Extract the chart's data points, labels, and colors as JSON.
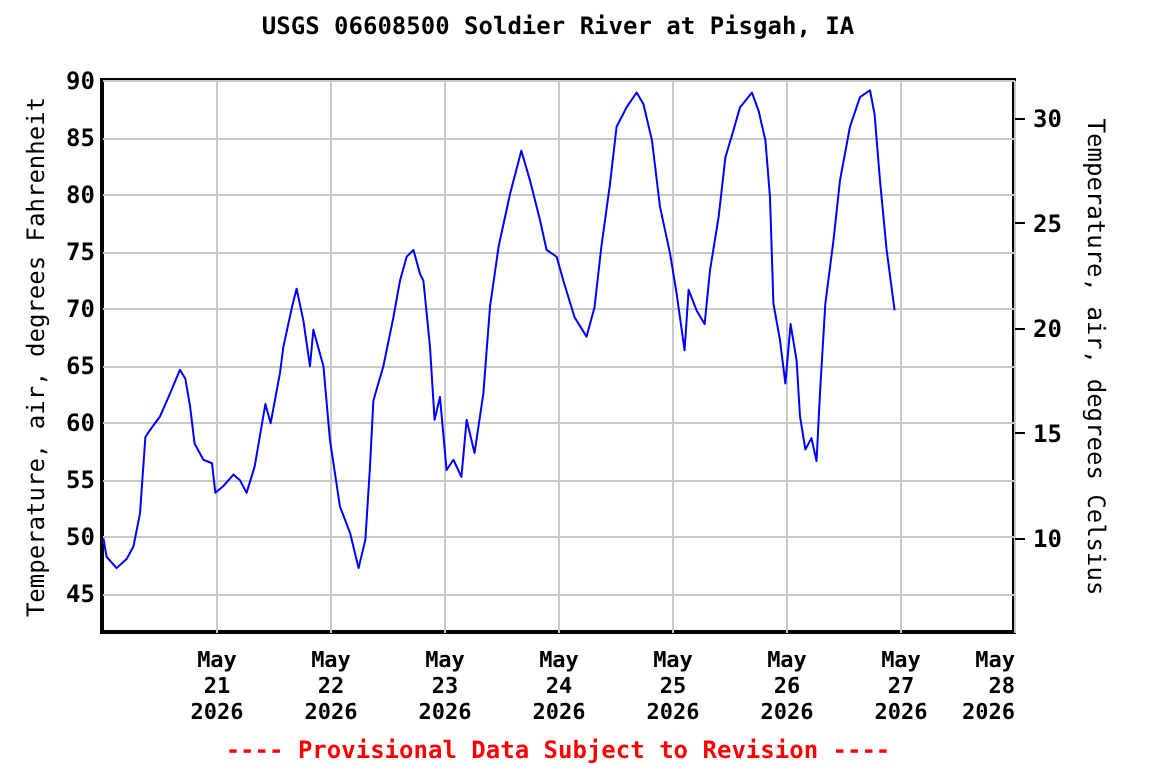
{
  "chart_data": {
    "type": "line",
    "title": "USGS 06608500 Soldier River at Pisgah, IA",
    "ylabel": "Temperature, air, degrees Fahrenheit",
    "y2label": "Temperature, air, degrees Celsius",
    "annotations": [
      "---- Provisional Data Subject to Revision ----"
    ],
    "xlim": [
      "2026-05-20",
      "2026-05-28"
    ],
    "xticks": [
      {
        "value": "2026-05-21",
        "label": "May\n21\n2026"
      },
      {
        "value": "2026-05-22",
        "label": "May\n22\n2026"
      },
      {
        "value": "2026-05-23",
        "label": "May\n23\n2026"
      },
      {
        "value": "2026-05-24",
        "label": "May\n24\n2026"
      },
      {
        "value": "2026-05-25",
        "label": "May\n25\n2026"
      },
      {
        "value": "2026-05-26",
        "label": "May\n26\n2026"
      },
      {
        "value": "2026-05-27",
        "label": "May\n27\n2026"
      },
      {
        "value": "2026-05-28",
        "label": "May\n28\n2026"
      }
    ],
    "ylim": [
      41.6,
      90
    ],
    "yticks": [
      45,
      50,
      55,
      60,
      65,
      70,
      75,
      80,
      85,
      90
    ],
    "y2lim": [
      5.5,
      31.8
    ],
    "y2ticks": [
      10,
      15,
      20,
      25,
      30
    ],
    "grid": true,
    "series": [
      {
        "color": "#0000ff",
        "x": [
          "2026-05-20T00:18",
          "2026-05-20T00:58",
          "2026-05-20T03:04",
          "2026-05-20T05:11",
          "2026-05-20T06:37",
          "2026-05-20T08:00",
          "2026-05-20T09:08",
          "2026-05-20T10:06",
          "2026-05-20T12:13",
          "2026-05-20T14:19",
          "2026-05-20T16:25",
          "2026-05-20T17:33",
          "2026-05-20T18:32",
          "2026-05-20T19:30",
          "2026-05-20T21:21",
          "2026-05-20T23:09",
          "2026-05-20T23:52",
          "2026-05-21T01:33",
          "2026-05-21T03:40",
          "2026-05-21T05:03",
          "2026-05-21T06:26",
          "2026-05-21T08:08",
          "2026-05-21T10:24",
          "2026-05-21T11:30",
          "2026-05-21T13:28",
          "2026-05-21T14:11",
          "2026-05-21T16:00",
          "2026-05-21T16:58",
          "2026-05-21T18:24",
          "2026-05-21T19:47",
          "2026-05-21T20:30",
          "2026-05-21T22:37",
          "2026-05-22T00:00",
          "2026-05-22T02:06",
          "2026-05-22T04:13",
          "2026-05-22T06:01",
          "2026-05-22T07:27",
          "2026-05-22T08:25",
          "2026-05-22T09:08",
          "2026-05-22T11:14",
          "2026-05-22T13:21",
          "2026-05-22T14:44",
          "2026-05-22T16:08",
          "2026-05-22T17:34",
          "2026-05-22T18:57",
          "2026-05-22T19:40",
          "2026-05-22T21:03",
          "2026-05-22T22:01",
          "2026-05-22T23:09",
          "2026-05-23T00:33",
          "2026-05-23T01:59",
          "2026-05-23T03:40",
          "2026-05-23T04:46",
          "2026-05-23T06:26",
          "2026-05-23T08:17",
          "2026-05-23T09:41",
          "2026-05-23T11:30",
          "2026-05-23T13:54",
          "2026-05-23T16:17",
          "2026-05-23T18:06",
          "2026-05-23T20:13",
          "2026-05-23T21:36",
          "2026-05-23T23:43",
          "2026-05-24T01:08",
          "2026-05-24T03:29",
          "2026-05-24T06:01",
          "2026-05-24T07:42",
          "2026-05-24T09:08",
          "2026-05-24T10:57",
          "2026-05-24T12:20",
          "2026-05-24T14:26",
          "2026-05-24T16:33",
          "2026-05-24T17:59",
          "2026-05-24T19:47",
          "2026-05-24T21:28",
          "2026-05-24T23:35",
          "2026-05-25T00:58",
          "2026-05-25T02:39",
          "2026-05-25T03:30",
          "2026-05-25T05:11",
          "2026-05-25T06:52",
          "2026-05-25T08:00",
          "2026-05-25T09:49",
          "2026-05-25T11:14",
          "2026-05-25T12:56",
          "2026-05-25T14:19",
          "2026-05-25T16:50",
          "2026-05-25T18:14",
          "2026-05-25T19:40",
          "2026-05-25T20:38",
          "2026-05-25T21:21",
          "2026-05-25T22:44",
          "2026-05-25T23:52",
          "2026-05-26T00:58",
          "2026-05-26T02:14",
          "2026-05-26T02:57",
          "2026-05-26T04:05",
          "2026-05-26T05:21",
          "2026-05-26T06:26",
          "2026-05-26T07:09",
          "2026-05-26T08:17",
          "2026-05-26T09:59",
          "2026-05-26T11:22",
          "2026-05-26T13:28",
          "2026-05-26T15:35",
          "2026-05-26T17:41",
          "2026-05-26T18:39",
          "2026-05-26T19:47",
          "2026-05-26T21:11",
          "2026-05-26T22:52"
        ],
        "values": [
          49.8,
          48.2,
          47.2,
          48.0,
          49.1,
          52.0,
          58.7,
          59.3,
          60.5,
          62.5,
          64.6,
          63.8,
          61.4,
          58.1,
          56.7,
          56.4,
          53.8,
          54.4,
          55.4,
          54.9,
          53.8,
          56.1,
          61.6,
          59.9,
          64.3,
          66.6,
          70.1,
          71.7,
          68.9,
          64.9,
          68.1,
          64.9,
          58.4,
          52.6,
          50.3,
          47.2,
          49.7,
          56.1,
          61.9,
          64.9,
          69.2,
          72.4,
          74.5,
          75.1,
          73.0,
          72.4,
          66.6,
          60.2,
          62.2,
          55.8,
          56.7,
          55.2,
          60.2,
          57.3,
          62.5,
          70.1,
          75.4,
          80.0,
          83.8,
          81.2,
          77.7,
          75.1,
          74.5,
          72.4,
          69.2,
          67.5,
          70.1,
          75.4,
          80.9,
          85.9,
          87.6,
          88.9,
          87.9,
          84.7,
          78.9,
          74.8,
          71.3,
          66.3,
          71.6,
          69.8,
          68.6,
          73.3,
          78.0,
          83.2,
          85.6,
          87.6,
          88.9,
          87.3,
          84.7,
          79.7,
          70.4,
          67.2,
          63.4,
          68.6,
          65.4,
          60.5,
          57.6,
          58.6,
          56.6,
          62.5,
          70.4,
          75.9,
          81.2,
          85.9,
          88.5,
          89.1,
          87.0,
          81.2,
          75.1,
          69.8
        ]
      }
    ]
  }
}
